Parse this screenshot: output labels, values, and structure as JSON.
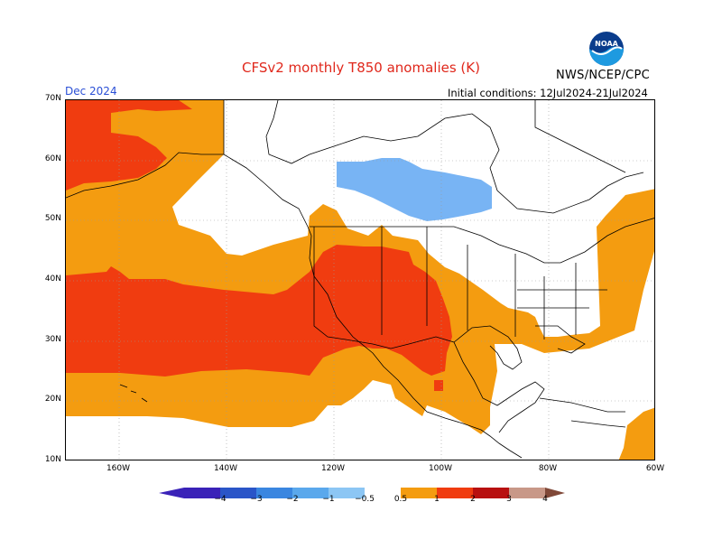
{
  "header": {
    "title": "CFSv2 monthly T850 anomalies (K)",
    "month": "Dec 2024",
    "agency": "NWS/NCEP/CPC",
    "initial_conditions": "Initial conditions: 12Jul2024-21Jul2024",
    "logo_text": "NOAA"
  },
  "lat_labels": [
    "70N",
    "60N",
    "50N",
    "40N",
    "30N",
    "20N",
    "10N"
  ],
  "lon_labels": [
    "160W",
    "140W",
    "120W",
    "100W",
    "80W",
    "60W"
  ],
  "colorbar": {
    "labels": [
      "−4",
      "−3",
      "−2",
      "−1",
      "−0.5",
      "0.5",
      "1",
      "2",
      "3",
      "4"
    ],
    "colors": [
      "#3a22b8",
      "#2a55c8",
      "#3a86e0",
      "#5aa8ec",
      "#8cc6f4",
      "#ffffff",
      "#f49c10",
      "#f03c10",
      "#b81010",
      "#c89888",
      "#804838"
    ]
  },
  "map_colors": {
    "orange": "#f49c10",
    "red": "#f03c10",
    "light_blue": "#78b4f4"
  }
}
